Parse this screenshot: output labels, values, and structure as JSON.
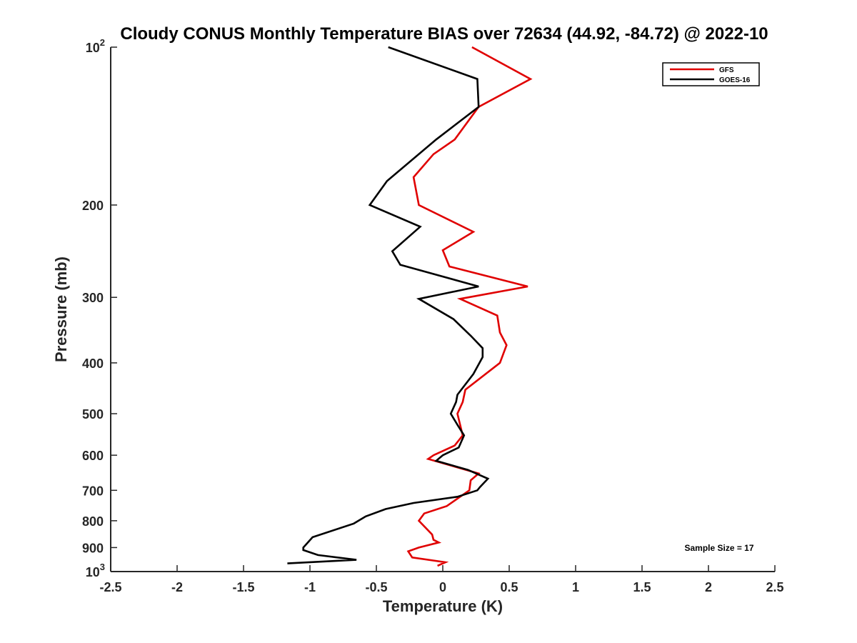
{
  "chart_data": {
    "type": "line",
    "title": "Cloudy CONUS Monthly Temperature BIAS over 72634 (44.92, -84.72) @ 2022-10",
    "xlabel": "Temperature (K)",
    "ylabel": "Pressure (mb)",
    "xlim": [
      -2.5,
      2.5
    ],
    "ylim": [
      100,
      1000
    ],
    "y_scale": "log",
    "y_reversed": true,
    "grid": false,
    "legend_position": "top-right",
    "x_ticks": [
      "-2.5",
      "-2",
      "-1.5",
      "-1",
      "-0.5",
      "0",
      "0.5",
      "1",
      "1.5",
      "2",
      "2.5"
    ],
    "x_tick_values": [
      -2.5,
      -2,
      -1.5,
      -1,
      -0.5,
      0,
      0.5,
      1,
      1.5,
      2,
      2.5
    ],
    "y_ticks": [
      {
        "value": 100,
        "base": "10",
        "exp": "2"
      },
      {
        "value": 200,
        "label": "200"
      },
      {
        "value": 300,
        "label": "300"
      },
      {
        "value": 400,
        "label": "400"
      },
      {
        "value": 500,
        "label": "500"
      },
      {
        "value": 600,
        "label": "600"
      },
      {
        "value": 700,
        "label": "700"
      },
      {
        "value": 800,
        "label": "800"
      },
      {
        "value": 900,
        "label": "900"
      },
      {
        "value": 1000,
        "base": "10",
        "exp": "3"
      }
    ],
    "annotation": "Sample Size = 17",
    "series": [
      {
        "name": "GFS",
        "color": "#e00000",
        "points": [
          {
            "x": 0.22,
            "y": 100
          },
          {
            "x": 0.66,
            "y": 115
          },
          {
            "x": 0.27,
            "y": 130
          },
          {
            "x": 0.09,
            "y": 150
          },
          {
            "x": -0.07,
            "y": 160
          },
          {
            "x": -0.22,
            "y": 177
          },
          {
            "x": -0.18,
            "y": 200
          },
          {
            "x": 0.23,
            "y": 225
          },
          {
            "x": 0.0,
            "y": 244
          },
          {
            "x": 0.05,
            "y": 262
          },
          {
            "x": 0.64,
            "y": 286
          },
          {
            "x": 0.13,
            "y": 302
          },
          {
            "x": 0.41,
            "y": 325
          },
          {
            "x": 0.43,
            "y": 350
          },
          {
            "x": 0.48,
            "y": 370
          },
          {
            "x": 0.43,
            "y": 400
          },
          {
            "x": 0.17,
            "y": 450
          },
          {
            "x": 0.15,
            "y": 475
          },
          {
            "x": 0.11,
            "y": 500
          },
          {
            "x": 0.15,
            "y": 550
          },
          {
            "x": 0.09,
            "y": 575
          },
          {
            "x": -0.07,
            "y": 600
          },
          {
            "x": -0.11,
            "y": 610
          },
          {
            "x": 0.27,
            "y": 650
          },
          {
            "x": 0.21,
            "y": 670
          },
          {
            "x": 0.2,
            "y": 700
          },
          {
            "x": 0.03,
            "y": 750
          },
          {
            "x": -0.14,
            "y": 775
          },
          {
            "x": -0.18,
            "y": 800
          },
          {
            "x": -0.08,
            "y": 850
          },
          {
            "x": -0.07,
            "y": 870
          },
          {
            "x": -0.03,
            "y": 880
          },
          {
            "x": -0.18,
            "y": 900
          },
          {
            "x": -0.26,
            "y": 915
          },
          {
            "x": -0.23,
            "y": 940
          },
          {
            "x": 0.02,
            "y": 960
          },
          {
            "x": -0.04,
            "y": 975
          }
        ]
      },
      {
        "name": "GOES-16",
        "color": "#000000",
        "points": [
          {
            "x": -0.41,
            "y": 100
          },
          {
            "x": 0.26,
            "y": 115
          },
          {
            "x": 0.27,
            "y": 130
          },
          {
            "x": -0.05,
            "y": 150
          },
          {
            "x": -0.42,
            "y": 180
          },
          {
            "x": -0.55,
            "y": 200
          },
          {
            "x": -0.17,
            "y": 220
          },
          {
            "x": -0.38,
            "y": 245
          },
          {
            "x": -0.32,
            "y": 260
          },
          {
            "x": 0.27,
            "y": 286
          },
          {
            "x": -0.18,
            "y": 302
          },
          {
            "x": 0.08,
            "y": 330
          },
          {
            "x": 0.21,
            "y": 355
          },
          {
            "x": 0.3,
            "y": 375
          },
          {
            "x": 0.3,
            "y": 390
          },
          {
            "x": 0.23,
            "y": 420
          },
          {
            "x": 0.11,
            "y": 460
          },
          {
            "x": 0.1,
            "y": 475
          },
          {
            "x": 0.06,
            "y": 500
          },
          {
            "x": 0.11,
            "y": 525
          },
          {
            "x": 0.16,
            "y": 550
          },
          {
            "x": 0.12,
            "y": 580
          },
          {
            "x": 0.0,
            "y": 600
          },
          {
            "x": -0.05,
            "y": 615
          },
          {
            "x": 0.19,
            "y": 640
          },
          {
            "x": 0.34,
            "y": 665
          },
          {
            "x": 0.28,
            "y": 690
          },
          {
            "x": 0.26,
            "y": 700
          },
          {
            "x": 0.11,
            "y": 720
          },
          {
            "x": -0.22,
            "y": 740
          },
          {
            "x": -0.43,
            "y": 760
          },
          {
            "x": -0.58,
            "y": 785
          },
          {
            "x": -0.67,
            "y": 810
          },
          {
            "x": -0.98,
            "y": 860
          },
          {
            "x": -1.05,
            "y": 900
          },
          {
            "x": -1.05,
            "y": 910
          },
          {
            "x": -0.94,
            "y": 930
          },
          {
            "x": -0.65,
            "y": 950
          },
          {
            "x": -1.17,
            "y": 965
          }
        ]
      }
    ]
  }
}
